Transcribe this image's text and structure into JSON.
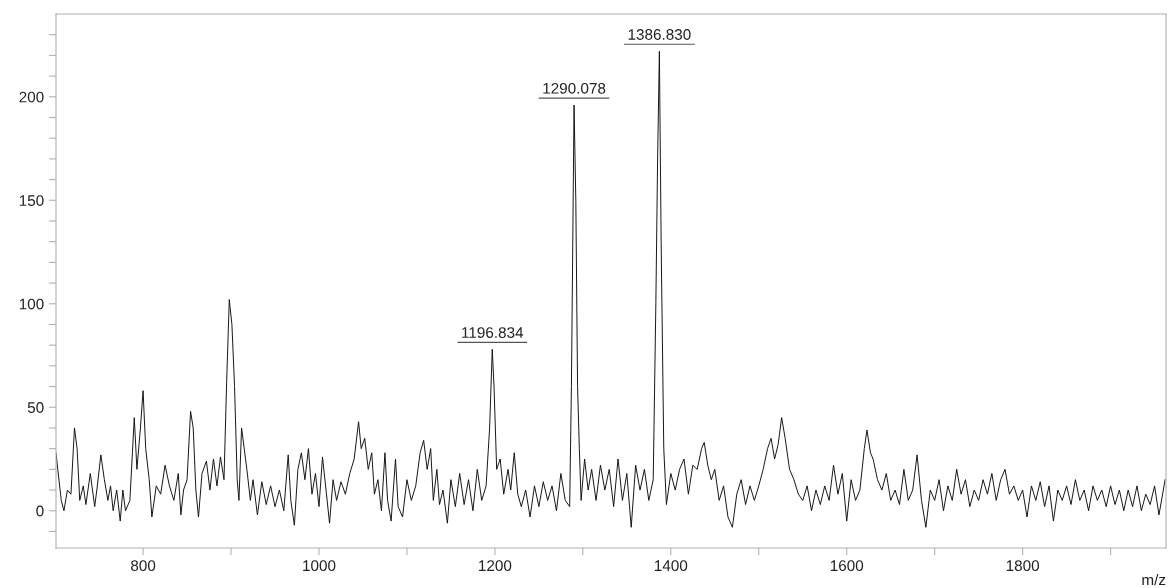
{
  "chart_data": {
    "type": "line",
    "xlabel": "m/z",
    "xlim": [
      701,
      1963
    ],
    "ylim": [
      -18,
      240
    ],
    "xticks": [
      800,
      {
        "value": 900,
        "label": null
      },
      1000,
      {
        "value": 1100,
        "label": null
      },
      1200,
      {
        "value": 1300,
        "label": null
      },
      1400,
      {
        "value": 1500,
        "label": null
      },
      1600,
      {
        "value": 1700,
        "label": null
      },
      1800,
      {
        "value": 1900,
        "label": null
      }
    ],
    "yticks": [
      {
        "value": -10,
        "label": null
      },
      0,
      {
        "value": 10,
        "label": null
      },
      {
        "value": 20,
        "label": null
      },
      {
        "value": 30,
        "label": null
      },
      {
        "value": 40,
        "label": null
      },
      50,
      {
        "value": 60,
        "label": null
      },
      {
        "value": 70,
        "label": null
      },
      {
        "value": 80,
        "label": null
      },
      {
        "value": 90,
        "label": null
      },
      100,
      {
        "value": 110,
        "label": null
      },
      {
        "value": 120,
        "label": null
      },
      {
        "value": 130,
        "label": null
      },
      {
        "value": 140,
        "label": null
      },
      150,
      {
        "value": 160,
        "label": null
      },
      {
        "value": 170,
        "label": null
      },
      {
        "value": 180,
        "label": null
      },
      {
        "value": 190,
        "label": null
      },
      200,
      {
        "value": 210,
        "label": null
      },
      {
        "value": 220,
        "label": null
      },
      {
        "value": 230,
        "label": null
      }
    ],
    "grid": false,
    "legend": false,
    "marker": "none",
    "line_style": "solid",
    "annotations": [
      {
        "text": "1196.834",
        "x": 1197,
        "y": 78
      },
      {
        "text": "1290.078",
        "x": 1290,
        "y": 196
      },
      {
        "text": "1386.830",
        "x": 1387,
        "y": 222
      }
    ],
    "series": [
      {
        "color": "#111111",
        "x": [
          701,
          703,
          707,
          710,
          714,
          718,
          722,
          725,
          728,
          732,
          735,
          740,
          745,
          748,
          752,
          756,
          760,
          763,
          766,
          770,
          774,
          777,
          780,
          785,
          790,
          793,
          797,
          800,
          803,
          807,
          810,
          815,
          820,
          825,
          830,
          835,
          840,
          843,
          846,
          850,
          854,
          857,
          860,
          863,
          867,
          872,
          876,
          880,
          884,
          888,
          892,
          895,
          898,
          901,
          904,
          907,
          909,
          912,
          915,
          918,
          922,
          925,
          930,
          935,
          940,
          945,
          950,
          955,
          960,
          965,
          968,
          972,
          976,
          980,
          984,
          988,
          992,
          996,
          1000,
          1004,
          1008,
          1012,
          1016,
          1020,
          1025,
          1030,
          1035,
          1040,
          1045,
          1048,
          1052,
          1056,
          1060,
          1063,
          1067,
          1071,
          1075,
          1078,
          1082,
          1087,
          1090,
          1095,
          1100,
          1105,
          1110,
          1115,
          1119,
          1123,
          1127,
          1130,
          1134,
          1137,
          1141,
          1146,
          1150,
          1155,
          1160,
          1165,
          1170,
          1175,
          1180,
          1185,
          1190,
          1194,
          1197,
          1199,
          1202,
          1206,
          1210,
          1215,
          1218,
          1222,
          1226,
          1230,
          1235,
          1240,
          1245,
          1250,
          1255,
          1260,
          1265,
          1270,
          1275,
          1280,
          1285,
          1287,
          1290,
          1292,
          1294,
          1296,
          1298,
          1302,
          1306,
          1310,
          1315,
          1320,
          1325,
          1330,
          1335,
          1340,
          1345,
          1350,
          1355,
          1360,
          1365,
          1370,
          1375,
          1380,
          1383,
          1385,
          1387,
          1389,
          1392,
          1395,
          1400,
          1405,
          1410,
          1415,
          1420,
          1425,
          1430,
          1435,
          1438,
          1442,
          1446,
          1450,
          1455,
          1460,
          1465,
          1470,
          1475,
          1480,
          1485,
          1490,
          1495,
          1500,
          1505,
          1510,
          1514,
          1518,
          1522,
          1526,
          1530,
          1535,
          1540,
          1545,
          1550,
          1555,
          1560,
          1565,
          1570,
          1575,
          1580,
          1585,
          1590,
          1595,
          1600,
          1605,
          1610,
          1615,
          1620,
          1623,
          1627,
          1630,
          1635,
          1640,
          1645,
          1650,
          1655,
          1660,
          1665,
          1670,
          1675,
          1680,
          1685,
          1690,
          1695,
          1700,
          1705,
          1710,
          1715,
          1720,
          1725,
          1730,
          1735,
          1740,
          1745,
          1750,
          1755,
          1760,
          1765,
          1770,
          1775,
          1780,
          1785,
          1790,
          1795,
          1800,
          1805,
          1810,
          1815,
          1820,
          1825,
          1830,
          1835,
          1840,
          1845,
          1850,
          1855,
          1860,
          1865,
          1870,
          1875,
          1880,
          1885,
          1890,
          1895,
          1900,
          1905,
          1910,
          1915,
          1920,
          1925,
          1930,
          1935,
          1940,
          1945,
          1950,
          1955,
          1962
        ],
        "values": [
          28,
          20,
          5,
          0,
          10,
          8,
          40,
          30,
          5,
          12,
          3,
          18,
          2,
          12,
          27,
          15,
          5,
          12,
          0,
          10,
          -5,
          10,
          0,
          5,
          45,
          20,
          40,
          58,
          30,
          15,
          -3,
          12,
          8,
          22,
          12,
          5,
          18,
          -2,
          10,
          15,
          48,
          40,
          10,
          -3,
          18,
          24,
          10,
          25,
          12,
          26,
          15,
          62,
          102,
          90,
          60,
          15,
          5,
          40,
          30,
          20,
          5,
          15,
          -2,
          14,
          3,
          12,
          2,
          10,
          0,
          27,
          5,
          -7,
          20,
          28,
          15,
          30,
          8,
          18,
          2,
          26,
          10,
          -6,
          15,
          5,
          14,
          8,
          18,
          25,
          43,
          30,
          35,
          20,
          28,
          8,
          15,
          0,
          28,
          5,
          -5,
          25,
          2,
          -3,
          15,
          5,
          12,
          28,
          34,
          20,
          30,
          5,
          20,
          3,
          10,
          -6,
          15,
          2,
          18,
          3,
          15,
          0,
          20,
          5,
          12,
          40,
          78,
          60,
          20,
          25,
          8,
          20,
          10,
          28,
          8,
          2,
          10,
          -3,
          12,
          2,
          14,
          5,
          12,
          0,
          18,
          5,
          2,
          60,
          196,
          150,
          60,
          30,
          5,
          25,
          10,
          20,
          5,
          22,
          10,
          20,
          2,
          25,
          5,
          18,
          -8,
          22,
          10,
          20,
          5,
          15,
          100,
          170,
          222,
          130,
          30,
          3,
          18,
          10,
          20,
          25,
          8,
          22,
          20,
          30,
          33,
          22,
          15,
          20,
          5,
          12,
          -3,
          -8,
          8,
          15,
          3,
          12,
          5,
          12,
          20,
          30,
          35,
          25,
          32,
          45,
          35,
          20,
          15,
          8,
          5,
          12,
          0,
          10,
          3,
          12,
          5,
          22,
          8,
          18,
          -5,
          15,
          5,
          10,
          30,
          39,
          28,
          25,
          15,
          10,
          18,
          5,
          10,
          3,
          20,
          5,
          10,
          27,
          5,
          -8,
          10,
          5,
          15,
          0,
          12,
          5,
          20,
          8,
          15,
          2,
          10,
          5,
          15,
          8,
          18,
          5,
          15,
          20,
          8,
          12,
          5,
          10,
          -3,
          12,
          5,
          14,
          2,
          12,
          -5,
          10,
          5,
          12,
          3,
          15,
          5,
          10,
          0,
          12,
          5,
          10,
          2,
          12,
          3,
          10,
          0,
          10,
          2,
          12,
          0,
          8,
          3,
          12,
          -2,
          15
        ]
      }
    ]
  }
}
